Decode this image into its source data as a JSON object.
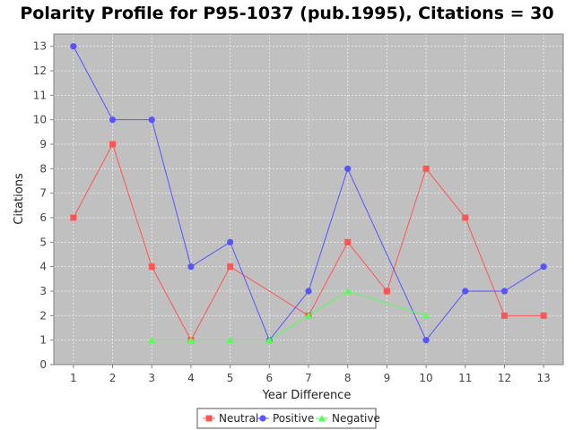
{
  "chart_data": {
    "type": "line",
    "title": "Polarity Profile for P95-1037 (pub.1995), Citations = 30",
    "xlabel": "Year Difference",
    "ylabel": "Citations",
    "x_categories": [
      1,
      2,
      3,
      4,
      5,
      6,
      7,
      8,
      9,
      10,
      11,
      12,
      13
    ],
    "ylim": [
      0,
      13.5
    ],
    "y_ticks": [
      0,
      1,
      2,
      3,
      4,
      5,
      6,
      7,
      8,
      9,
      10,
      11,
      12,
      13
    ],
    "grid": true,
    "legend_position": "bottom-center",
    "series": [
      {
        "name": "Neutral",
        "color": "#ff5555",
        "marker": "square",
        "x": [
          1,
          2,
          3,
          4,
          5,
          7,
          8,
          9,
          10,
          11,
          12,
          13
        ],
        "values": [
          6,
          9,
          4,
          1,
          4,
          2,
          5,
          3,
          8,
          6,
          2,
          2
        ]
      },
      {
        "name": "Positive",
        "color": "#5555ff",
        "marker": "circle",
        "x": [
          1,
          2,
          3,
          4,
          5,
          6,
          7,
          8,
          10,
          11,
          12,
          13
        ],
        "values": [
          13,
          10,
          10,
          4,
          5,
          1,
          3,
          8,
          1,
          3,
          3,
          4
        ]
      },
      {
        "name": "Negative",
        "color": "#55ff55",
        "marker": "triangle",
        "x": [
          3,
          4,
          5,
          6,
          7,
          8,
          10
        ],
        "values": [
          1,
          1,
          1,
          1,
          2,
          3,
          2
        ]
      }
    ]
  },
  "colors": {
    "plot_background": "#c0c0c0",
    "grid": "#e6e6e6"
  }
}
